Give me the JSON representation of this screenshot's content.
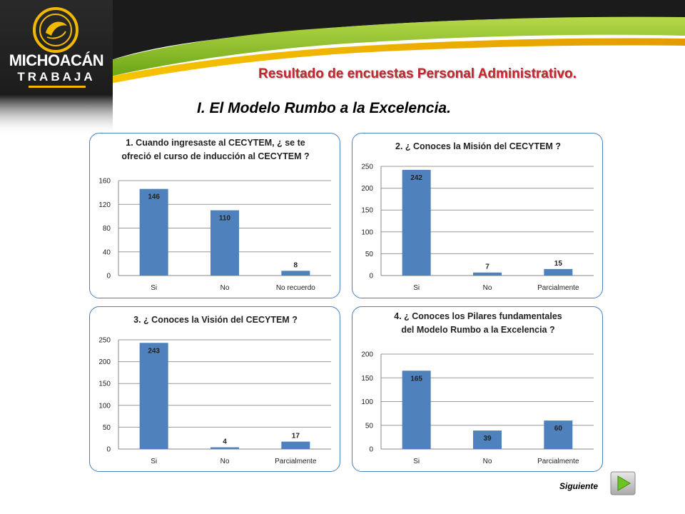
{
  "header": {
    "logo_line1": "MICHOACÁN",
    "logo_line2": "TRABAJA",
    "title": "Resultado de encuestas Personal Administrativo.",
    "section": "I. El Modelo Rumbo a la Excelencia.",
    "colors": {
      "title": "#c1272d",
      "dark": "#1a1a1a",
      "green": "#7ab800",
      "gold": "#f2b800"
    }
  },
  "chart_data": [
    {
      "type": "bar",
      "title_lines": [
        "1. Cuando ingresaste al CECYTEM, ¿ se te",
        "ofreció el curso de inducción al CECYTEM  ?"
      ],
      "categories": [
        "Si",
        "No",
        "No recuerdo"
      ],
      "values": [
        146,
        110,
        8
      ],
      "yticks": [
        0,
        40,
        80,
        120,
        160
      ],
      "ylim": [
        0,
        160
      ],
      "grid": true,
      "color": "#4f81bd"
    },
    {
      "type": "bar",
      "title_lines": [
        "2. ¿ Conoces la Misión del CECYTEM ?"
      ],
      "categories": [
        "Si",
        "No",
        "Parcialmente"
      ],
      "values": [
        242,
        7,
        15
      ],
      "yticks": [
        0,
        50,
        100,
        150,
        200,
        250
      ],
      "ylim": [
        0,
        250
      ],
      "grid": true,
      "color": "#4f81bd"
    },
    {
      "type": "bar",
      "title_lines": [
        "3. ¿ Conoces la Visión del CECYTEM ?"
      ],
      "categories": [
        "Si",
        "No",
        "Parcialmente"
      ],
      "values": [
        243,
        4,
        17
      ],
      "yticks": [
        0,
        50,
        100,
        150,
        200,
        250
      ],
      "ylim": [
        0,
        250
      ],
      "grid": true,
      "color": "#4f81bd"
    },
    {
      "type": "bar",
      "title_lines": [
        "4. ¿ Conoces los Pilares fundamentales",
        "del Modelo Rumbo a la Excelencia ?"
      ],
      "categories": [
        "Si",
        "No",
        "Parcialmente"
      ],
      "values": [
        165,
        39,
        60
      ],
      "yticks": [
        0,
        50,
        100,
        150,
        200
      ],
      "ylim": [
        0,
        200
      ],
      "grid": true,
      "color": "#4f81bd"
    }
  ],
  "footer": {
    "next_label": "Siguiente",
    "next_icon": "play-arrow-icon"
  }
}
